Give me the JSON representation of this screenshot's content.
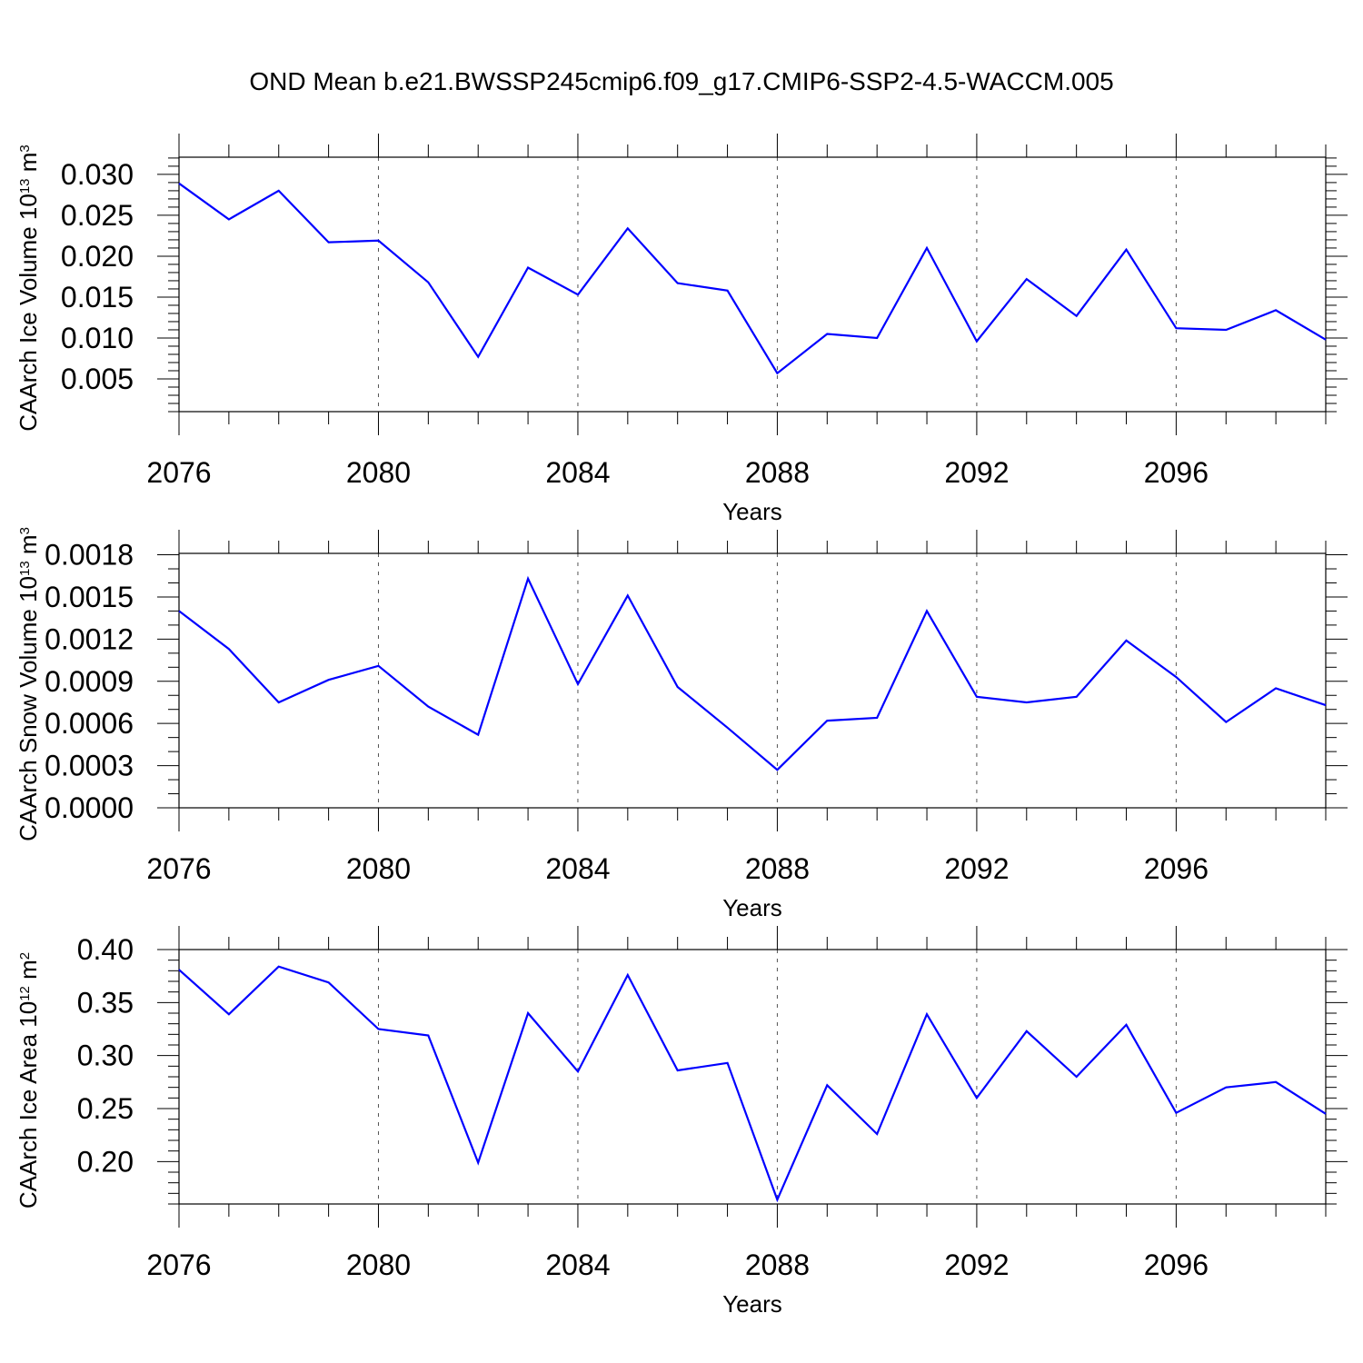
{
  "title": "OND Mean b.e21.BWSSP245cmip6.f09_g17.CMIP6-SSP2-4.5-WACCM.005",
  "colors": {
    "line": "#0000ff",
    "axis": "#000000",
    "grid": "#555555"
  },
  "chart_data": [
    {
      "type": "line",
      "xlabel": "Years",
      "ylabel": {
        "text": "CAArch Ice Volume 10",
        "exponent": "13",
        "unit": " m",
        "unit_exponent": "3"
      },
      "xlim": [
        2076,
        2099
      ],
      "ylim": [
        0.001,
        0.0321
      ],
      "x": [
        2076,
        2077,
        2078,
        2079,
        2080,
        2081,
        2082,
        2083,
        2084,
        2085,
        2086,
        2087,
        2088,
        2089,
        2090,
        2091,
        2092,
        2093,
        2094,
        2095,
        2096,
        2097,
        2098,
        2099
      ],
      "xticks": [
        2076,
        2080,
        2084,
        2088,
        2092,
        2096
      ],
      "xtick_labels": [
        "2076",
        "2080",
        "2084",
        "2088",
        "2092",
        "2096"
      ],
      "yticks": [
        0.005,
        0.01,
        0.015,
        0.02,
        0.025,
        0.03
      ],
      "ytick_labels": [
        "0.005",
        "0.010",
        "0.015",
        "0.020",
        "0.025",
        "0.030"
      ],
      "y_minor_step": 0.001,
      "series": [
        {
          "name": "CAArch Ice Volume",
          "values": [
            0.0289,
            0.0245,
            0.028,
            0.0217,
            0.0219,
            0.0168,
            0.0077,
            0.0186,
            0.0153,
            0.0234,
            0.0167,
            0.0158,
            0.0057,
            0.0105,
            0.01,
            0.021,
            0.0096,
            0.0172,
            0.0127,
            0.0208,
            0.0112,
            0.011,
            0.0134,
            0.0098
          ]
        }
      ]
    },
    {
      "type": "line",
      "xlabel": "Years",
      "ylabel": {
        "text": "CAArch Snow Volume 10",
        "exponent": "13",
        "unit": " m",
        "unit_exponent": "3"
      },
      "xlim": [
        2076,
        2099
      ],
      "ylim": [
        0.0,
        0.00181
      ],
      "x": [
        2076,
        2077,
        2078,
        2079,
        2080,
        2081,
        2082,
        2083,
        2084,
        2085,
        2086,
        2087,
        2088,
        2089,
        2090,
        2091,
        2092,
        2093,
        2094,
        2095,
        2096,
        2097,
        2098,
        2099
      ],
      "xticks": [
        2076,
        2080,
        2084,
        2088,
        2092,
        2096
      ],
      "xtick_labels": [
        "2076",
        "2080",
        "2084",
        "2088",
        "2092",
        "2096"
      ],
      "yticks": [
        0.0,
        0.0003,
        0.0006,
        0.0009,
        0.0012,
        0.0015,
        0.0018
      ],
      "ytick_labels": [
        "0.0000",
        "0.0003",
        "0.0006",
        "0.0009",
        "0.0012",
        "0.0015",
        "0.0018"
      ],
      "y_minor_step": 0.0001,
      "series": [
        {
          "name": "CAArch Snow Volume",
          "values": [
            0.0014,
            0.00113,
            0.00075,
            0.00091,
            0.00101,
            0.00072,
            0.00052,
            0.00163,
            0.00088,
            0.00151,
            0.00086,
            0.00057,
            0.00027,
            0.00062,
            0.00064,
            0.0014,
            0.00079,
            0.00075,
            0.00079,
            0.00119,
            0.00093,
            0.00061,
            0.00085,
            0.00073
          ]
        }
      ]
    },
    {
      "type": "line",
      "xlabel": "Years",
      "ylabel": {
        "text": "CAArch Ice Area 10",
        "exponent": "12",
        "unit": " m",
        "unit_exponent": "2"
      },
      "xlim": [
        2076,
        2099
      ],
      "ylim": [
        0.16,
        0.4
      ],
      "x": [
        2076,
        2077,
        2078,
        2079,
        2080,
        2081,
        2082,
        2083,
        2084,
        2085,
        2086,
        2087,
        2088,
        2089,
        2090,
        2091,
        2092,
        2093,
        2094,
        2095,
        2096,
        2097,
        2098,
        2099
      ],
      "xticks": [
        2076,
        2080,
        2084,
        2088,
        2092,
        2096
      ],
      "xtick_labels": [
        "2076",
        "2080",
        "2084",
        "2088",
        "2092",
        "2096"
      ],
      "yticks": [
        0.2,
        0.25,
        0.3,
        0.35,
        0.4
      ],
      "ytick_labels": [
        "0.20",
        "0.25",
        "0.30",
        "0.35",
        "0.40"
      ],
      "y_minor_step": 0.01,
      "series": [
        {
          "name": "CAArch Ice Area",
          "values": [
            0.381,
            0.339,
            0.384,
            0.369,
            0.325,
            0.319,
            0.199,
            0.34,
            0.285,
            0.376,
            0.286,
            0.293,
            0.164,
            0.272,
            0.226,
            0.339,
            0.26,
            0.323,
            0.28,
            0.329,
            0.246,
            0.27,
            0.275,
            0.245
          ]
        }
      ]
    }
  ]
}
